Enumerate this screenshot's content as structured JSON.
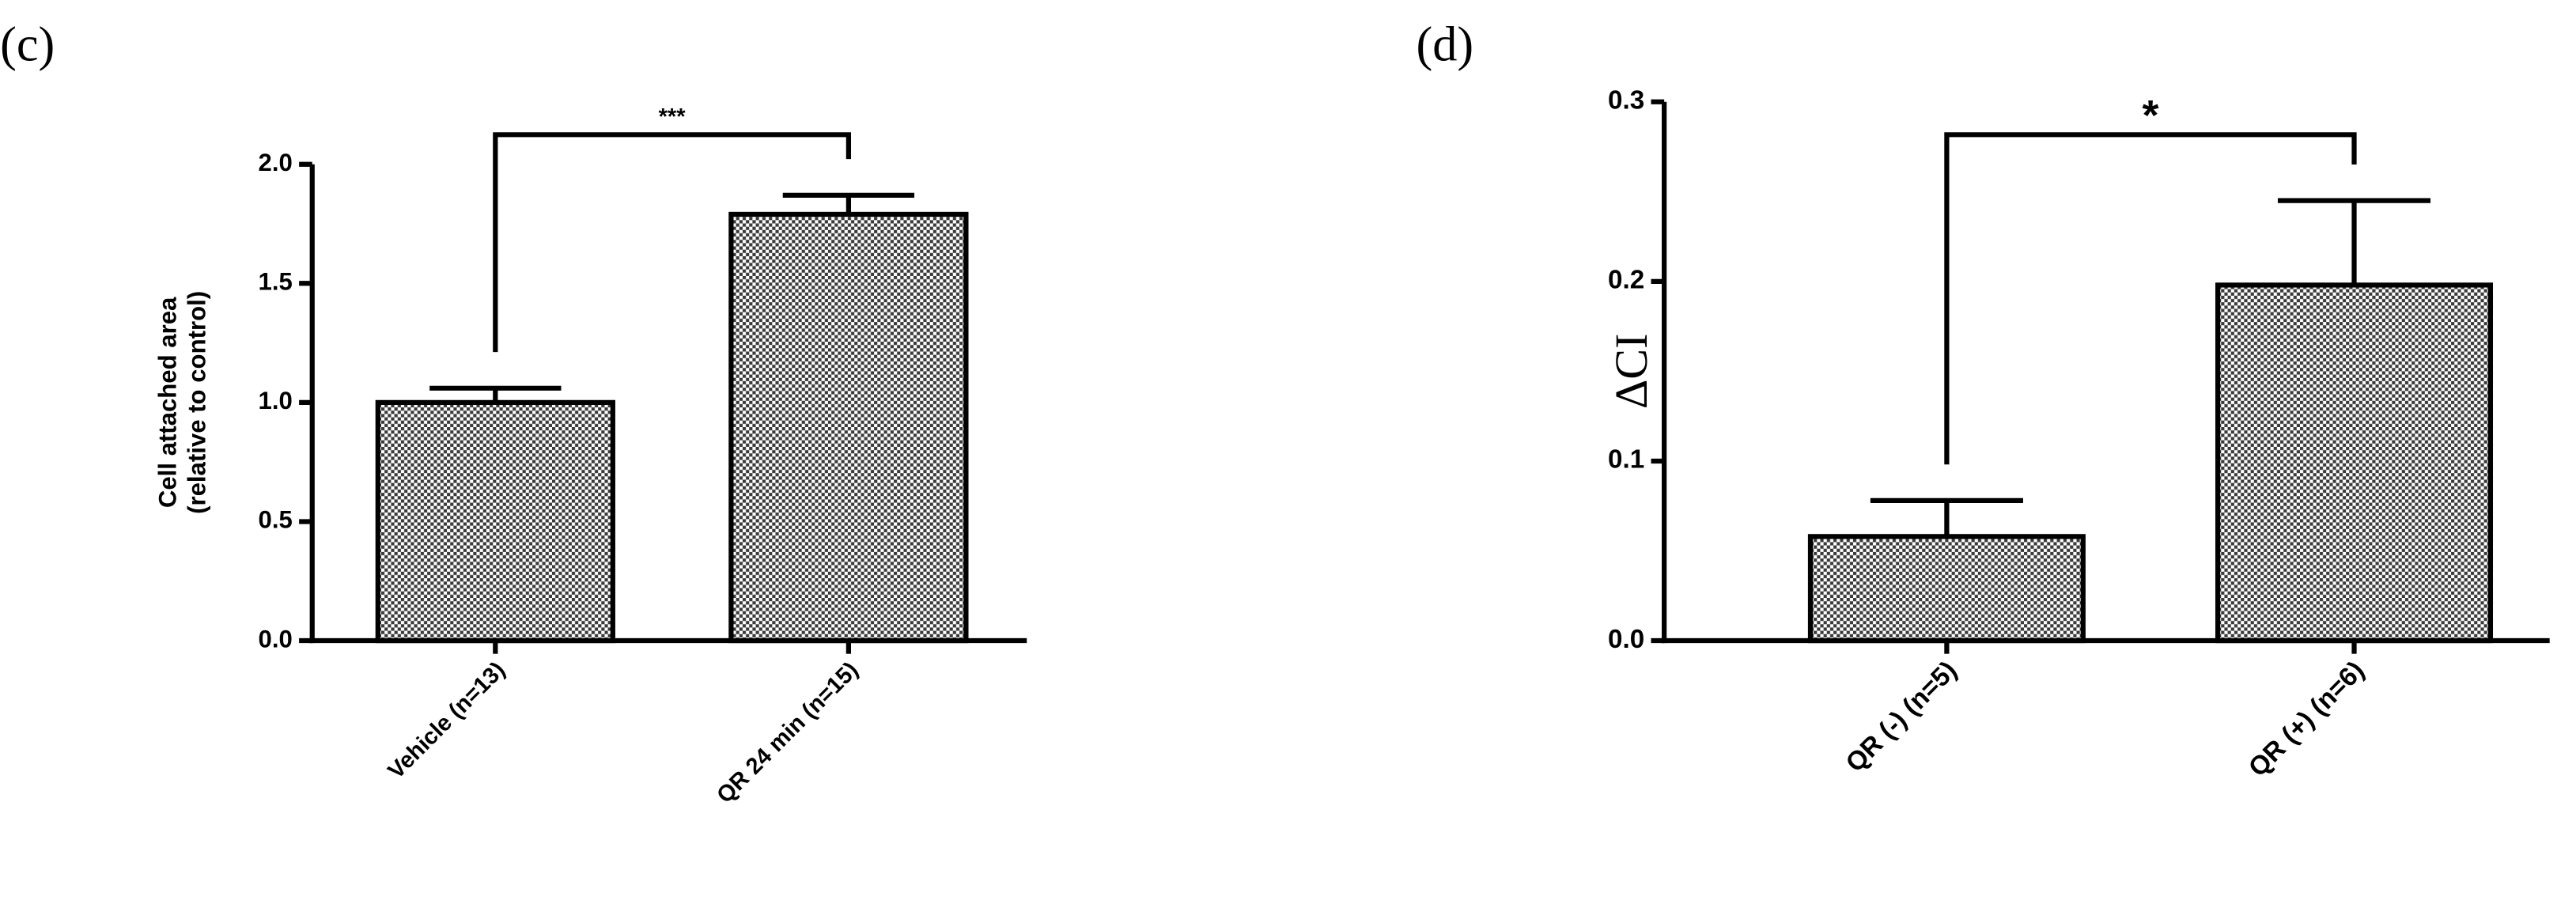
{
  "chart_data": [
    {
      "type": "bar",
      "panel_label": "(c)",
      "ylabel": [
        "Cell attached area",
        "(relative to control)"
      ],
      "categories": [
        "Vehicle (n=13)",
        "QR 24 min (n=15)"
      ],
      "values": [
        1.0,
        1.79
      ],
      "errors": [
        0.06,
        0.08
      ],
      "color": "#3a3a3a",
      "ylim": [
        0,
        2.0
      ],
      "yticks": [
        {
          "value": 0,
          "label": "0.0"
        },
        0.5,
        {
          "value": 1.0,
          "label": "1.0"
        },
        1.5,
        {
          "value": 2.0,
          "label": "2.0"
        }
      ],
      "significance": "***"
    },
    {
      "type": "bar",
      "panel_label": "(d)",
      "ylabel": [
        "ΔCI"
      ],
      "categories": [
        "QR (-) (n=5)",
        "QR (+) (n=6)"
      ],
      "values": [
        0.058,
        0.198
      ],
      "errors": [
        0.02,
        0.047
      ],
      "color": "#3a3a3a",
      "ylim": [
        0,
        0.3
      ],
      "yticks": [
        {
          "value": 0,
          "label": "0.0"
        },
        0.1,
        0.2,
        0.3
      ],
      "significance": "*"
    }
  ]
}
